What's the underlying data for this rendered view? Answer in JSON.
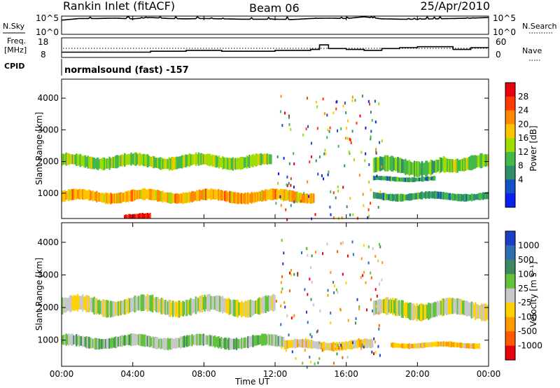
{
  "header": {
    "radar": "Rankin Inlet (fitACF)",
    "beam": "Beam 06",
    "date": "25/Apr/2010",
    "program": "normalsound (fast) -157"
  },
  "panels": {
    "noise": {
      "left_label": "N.Sky",
      "right_label": "N.Search",
      "left_ticks": [
        "10^5",
        "10^0"
      ],
      "right_ticks": [
        "10^5",
        "10^0"
      ]
    },
    "freq": {
      "left_label_1": "Freq.",
      "left_label_2": "[MHz]",
      "left_ticks": [
        "18",
        "8"
      ],
      "right_label": "Nave",
      "right_ticks": [
        "60",
        "0"
      ]
    },
    "cpid_label": "CPID"
  },
  "colorbars": {
    "power": {
      "title": "Power [dB]",
      "ticks": [
        "28",
        "24",
        "20",
        "16",
        "12",
        "8",
        "4"
      ],
      "colors": [
        "#e8000b",
        "#ff3a00",
        "#ff8a00",
        "#ffc400",
        "#9fdc00",
        "#44b84a",
        "#2f8f6a",
        "#1450c8",
        "#0a20f0"
      ]
    },
    "velocity": {
      "title": "Velocity [m s⁻¹]",
      "ticks": [
        "1000",
        "500",
        "100",
        "25",
        "-25",
        "-100",
        "-500",
        "-1000"
      ],
      "colors": [
        "#1a3fc4",
        "#2e6fb0",
        "#3c8a62",
        "#62c23a",
        "#c8c8c8",
        "#ffd200",
        "#ff9a00",
        "#ff5a00",
        "#e8000b"
      ]
    }
  },
  "axes": {
    "ylabel": "Slant Range [km]",
    "xlabel": "Time UT",
    "yticks": [
      "4000",
      "3000",
      "2000",
      "1000"
    ],
    "xticks": [
      "00:00",
      "04:00",
      "08:00",
      "12:00",
      "16:00",
      "20:00",
      "00:00"
    ]
  },
  "chart_data": [
    {
      "type": "line",
      "panel": "noise",
      "x": [
        0,
        1,
        2,
        3,
        4,
        5,
        6,
        7,
        8,
        9,
        10,
        11,
        12,
        13,
        14,
        15,
        16,
        17,
        18,
        19,
        20,
        21,
        22,
        23,
        24
      ],
      "series": [
        {
          "name": "N.Sky",
          "values": [
            4.0,
            4.5,
            4.5,
            4.6,
            4.4,
            4.8,
            4.5,
            4.4,
            4.5,
            4.4,
            4.3,
            4.3,
            4.3,
            4.2,
            4.5,
            4.6,
            4.5,
            5.0,
            4.4,
            4.3,
            4.3,
            4.4,
            4.5,
            4.6,
            4.8
          ]
        }
      ],
      "ylim": [
        0,
        5
      ],
      "xlim": [
        0,
        24
      ]
    },
    {
      "type": "line",
      "panel": "frequency",
      "x": [
        0,
        1,
        2,
        3,
        4,
        5,
        6,
        7,
        8,
        9,
        10,
        11,
        12,
        13,
        14,
        14.5,
        15,
        16,
        17,
        18,
        19,
        20,
        21,
        22,
        23,
        24
      ],
      "series": [
        {
          "name": "Freq.",
          "values": [
            10.5,
            10.5,
            10.5,
            10.5,
            10.5,
            11.0,
            11.0,
            11.5,
            11.5,
            11.0,
            11.0,
            11.0,
            11.5,
            11.5,
            12.0,
            14.5,
            12.5,
            12.0,
            11.5,
            12.5,
            13.0,
            13.5,
            13.5,
            12.0,
            13.0,
            13.0
          ]
        }
      ],
      "ylim": [
        8,
        18
      ],
      "xlim": [
        0,
        24
      ]
    },
    {
      "type": "heatmap",
      "panel": "power",
      "title": "Power",
      "xlabel": "Time UT",
      "ylabel": "Slant Range [km]",
      "xlim": [
        0,
        24
      ],
      "ylim": [
        200,
        4600
      ],
      "zlim": [
        0,
        30
      ],
      "bands": [
        {
          "x": [
            0,
            14.2
          ],
          "y_center": 900,
          "y_width": 380,
          "z": 20
        },
        {
          "x": [
            0,
            11.8
          ],
          "y_center": 2000,
          "y_width": 430,
          "z": 14
        },
        {
          "x": [
            17.5,
            21.5
          ],
          "y_center": 1850,
          "y_width": 520,
          "z": 12
        },
        {
          "x": [
            17.5,
            21.0
          ],
          "y_center": 1450,
          "y_width": 160,
          "z": 10
        },
        {
          "x": [
            17.5,
            24
          ],
          "y_center": 900,
          "y_width": 250,
          "z": 10
        },
        {
          "x": [
            21.5,
            24
          ],
          "y_center": 1950,
          "y_width": 480,
          "z": 14
        },
        {
          "x": [
            3.5,
            5.0
          ],
          "y_center": 250,
          "y_width": 200,
          "z": 28
        }
      ]
    },
    {
      "type": "heatmap",
      "panel": "velocity",
      "title": "Velocity",
      "xlabel": "Time UT",
      "ylabel": "Slant Range [km]",
      "xlim": [
        0,
        24
      ],
      "ylim": [
        200,
        4600
      ],
      "zlim": [
        -1000,
        1000
      ],
      "bands": [
        {
          "x": [
            0,
            12.0
          ],
          "y_center": 2050,
          "y_width": 550,
          "z": 0
        },
        {
          "x": [
            0,
            12.5
          ],
          "y_center": 950,
          "y_width": 380,
          "z": 150
        },
        {
          "x": [
            17.5,
            24
          ],
          "y_center": 1950,
          "y_width": 550,
          "z": 0
        },
        {
          "x": [
            18.5,
            23.5
          ],
          "y_center": 850,
          "y_width": 180,
          "z": -300
        },
        {
          "x": [
            12.5,
            17.5
          ],
          "y_center": 850,
          "y_width": 300,
          "z": -150
        }
      ]
    }
  ]
}
